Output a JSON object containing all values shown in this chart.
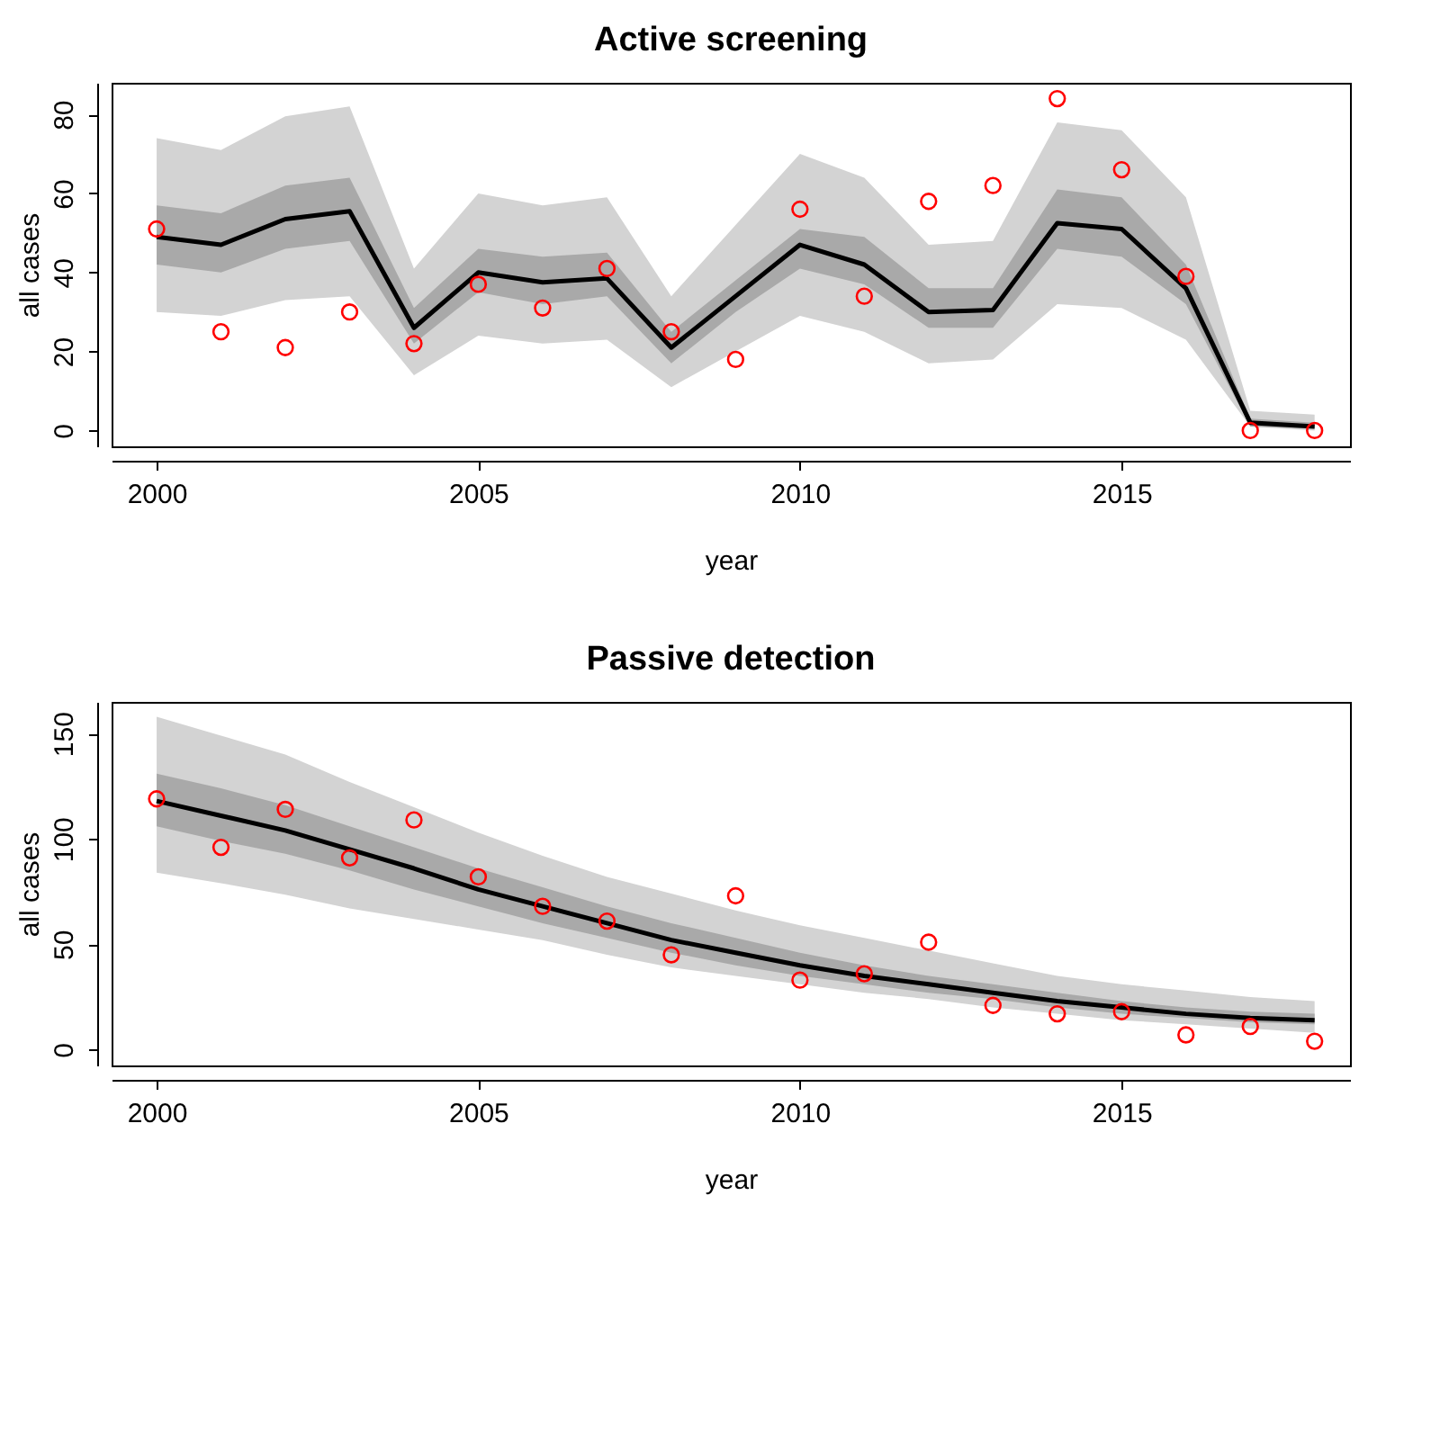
{
  "chart_data": [
    {
      "type": "line",
      "title": "Active screening",
      "xlabel": "year",
      "ylabel": "all cases",
      "x": [
        2000,
        2001,
        2002,
        2003,
        2004,
        2005,
        2006,
        2007,
        2008,
        2009,
        2010,
        2011,
        2012,
        2013,
        2014,
        2015,
        2016,
        2017,
        2018
      ],
      "xlim": [
        1999.3,
        2018.55
      ],
      "xticks": [
        2000,
        2005,
        2010,
        2015
      ],
      "ylim": [
        -4,
        88
      ],
      "yticks": [
        0,
        20,
        40,
        60,
        80
      ],
      "series": [
        {
          "type": "line",
          "color": "#d3d3d3",
          "values": [
            null,
            null,
            null,
            null,
            null,
            null,
            null,
            null,
            null,
            null,
            null,
            null,
            null,
            null,
            null,
            null,
            null,
            null,
            null
          ],
          "lower": [
            30,
            29,
            33,
            34,
            14,
            24,
            22,
            23,
            11,
            20,
            29,
            25,
            17,
            18,
            32,
            31,
            23,
            1,
            0
          ],
          "upper": [
            74,
            71,
            79.5,
            82,
            41,
            60,
            57,
            59,
            34,
            52,
            70,
            64,
            47,
            48,
            78,
            76,
            59,
            5,
            4
          ]
        },
        {
          "type": "line",
          "color": "#a9a9a9",
          "values": [
            null,
            null,
            null,
            null,
            null,
            null,
            null,
            null,
            null,
            null,
            null,
            null,
            null,
            null,
            null,
            null,
            null,
            null,
            null
          ],
          "lower": [
            42,
            40,
            46,
            48,
            22,
            35,
            32,
            34,
            17,
            30,
            41,
            37,
            26,
            26,
            46,
            44,
            32,
            1,
            0.5
          ],
          "upper": [
            57,
            55,
            62,
            64,
            31,
            46,
            44,
            45,
            25,
            38,
            51,
            49,
            36,
            36,
            61,
            59,
            42,
            3,
            2
          ]
        },
        {
          "type": "line",
          "color": "#000000",
          "values": [
            49,
            47,
            53.5,
            55.5,
            26,
            40,
            37.5,
            38.5,
            21,
            34,
            47,
            42,
            30,
            30.5,
            52.5,
            51,
            36,
            2,
            1
          ]
        },
        {
          "type": "scatter",
          "color": "#ff0000",
          "marker": "circle",
          "values": [
            51,
            25,
            21,
            30,
            22,
            37,
            31,
            41,
            25,
            18,
            56,
            34,
            58,
            62,
            84,
            66,
            39,
            0,
            0
          ]
        }
      ]
    },
    {
      "type": "line",
      "title": "Passive detection",
      "xlabel": "year",
      "ylabel": "all cases",
      "x": [
        2000,
        2001,
        2002,
        2003,
        2004,
        2005,
        2006,
        2007,
        2008,
        2009,
        2010,
        2011,
        2012,
        2013,
        2014,
        2015,
        2016,
        2017,
        2018
      ],
      "xlim": [
        1999.3,
        2018.55
      ],
      "xticks": [
        2000,
        2005,
        2010,
        2015
      ],
      "ylim": [
        -7.5,
        165
      ],
      "yticks": [
        0,
        50,
        100,
        150
      ],
      "series": [
        {
          "type": "line",
          "color": "#d3d3d3",
          "values": [
            null,
            null,
            null,
            null,
            null,
            null,
            null,
            null,
            null,
            null,
            null,
            null,
            null,
            null,
            null,
            null,
            null,
            null,
            null
          ],
          "lower": [
            84,
            79,
            73.5,
            67,
            62,
            57,
            52,
            45,
            39,
            35,
            31,
            27,
            24,
            20,
            17,
            14,
            12,
            10,
            8
          ],
          "upper": [
            158,
            149,
            140,
            127,
            115,
            103,
            92,
            82,
            74,
            66,
            59,
            53,
            47,
            41,
            35,
            31,
            28,
            25,
            23
          ]
        },
        {
          "type": "line",
          "color": "#a9a9a9",
          "values": [
            null,
            null,
            null,
            null,
            null,
            null,
            null,
            null,
            null,
            null,
            null,
            null,
            null,
            null,
            null,
            null,
            null,
            null,
            null
          ],
          "lower": [
            106,
            99,
            93,
            85,
            76,
            68,
            60,
            53,
            46,
            40,
            35,
            31,
            27,
            24,
            20,
            17,
            15,
            13,
            12
          ],
          "upper": [
            131,
            124,
            116,
            106,
            96,
            86,
            77,
            68,
            60,
            53,
            46,
            40,
            35,
            31,
            27,
            23,
            20,
            18,
            17
          ]
        },
        {
          "type": "line",
          "color": "#000000",
          "values": [
            118,
            111,
            104,
            95,
            86,
            76,
            68,
            60,
            52,
            46,
            40,
            35,
            31,
            27,
            23,
            20,
            17,
            15,
            14
          ]
        },
        {
          "type": "scatter",
          "color": "#ff0000",
          "marker": "circle",
          "values": [
            119,
            96,
            114,
            91,
            109,
            82,
            68,
            61,
            45,
            73,
            33,
            36,
            51,
            21,
            17,
            18,
            7,
            11,
            4
          ]
        }
      ]
    }
  ]
}
